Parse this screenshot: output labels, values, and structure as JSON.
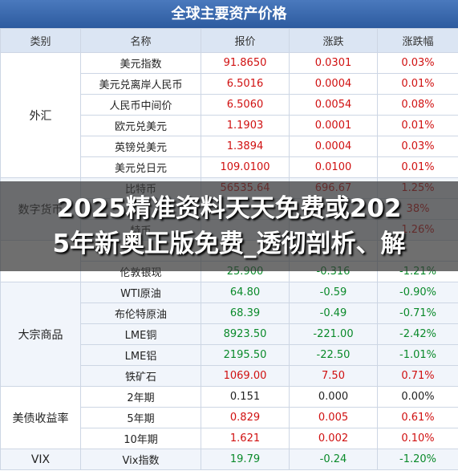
{
  "title": "全球主要资产价格",
  "header": [
    "类别",
    "名称",
    "报价",
    "涨跌",
    "涨跌幅"
  ],
  "groups": [
    {
      "category": "外汇",
      "rows": [
        [
          "美元指数",
          "91.8650",
          "0.0301",
          "0.03%"
        ],
        [
          "美元兑离岸人民币",
          "6.5016",
          "0.0004",
          "0.01%"
        ],
        [
          "人民币中间价",
          "6.5060",
          "0.0054",
          "0.08%"
        ],
        [
          "欧元兑美元",
          "1.1903",
          "0.0001",
          "0.01%"
        ],
        [
          "英镑兑美元",
          "1.3894",
          "0.0004",
          "0.03%"
        ],
        [
          "美元兑日元",
          "109.0100",
          "0.0100",
          "0.01%"
        ]
      ]
    },
    {
      "category": "数字货币",
      "rows": [
        [
          "比特币",
          "56535.64",
          "696.67",
          "1.25%"
        ],
        [
          null,
          null,
          null,
          "38%"
        ],
        [
          "特币",
          null,
          null,
          "1.26%"
        ]
      ]
    },
    {
      "category": null,
      "rows": [
        [
          null,
          null,
          null,
          null
        ],
        [
          "伦敦银现",
          "25.900",
          "-0.316",
          "-1.21%"
        ]
      ]
    },
    {
      "category": "大宗商品",
      "rows": [
        [
          "WTI原油",
          "64.80",
          "-0.59",
          "-0.90%"
        ],
        [
          "布伦特原油",
          "68.39",
          "-0.49",
          "-0.71%"
        ],
        [
          "LME铜",
          "8923.50",
          "-221.00",
          "-2.42%"
        ],
        [
          "LME铝",
          "2195.50",
          "-22.50",
          "-1.01%"
        ],
        [
          "铁矿石",
          "1069.00",
          "7.50",
          "0.71%"
        ]
      ]
    },
    {
      "category": "美债收益率",
      "rows": [
        [
          "2年期",
          "0.151",
          "0.000",
          "0.00%"
        ],
        [
          "5年期",
          "0.829",
          "0.005",
          "0.61%"
        ],
        [
          "10年期",
          "1.621",
          "0.002",
          "0.10%"
        ]
      ]
    },
    {
      "category": "VIX",
      "rows": [
        [
          "Vix指数",
          "19.79",
          "-0.24",
          "-1.20%"
        ]
      ]
    }
  ],
  "overlay": [
    "2025精准资料天天免费或202",
    "5年新奥正版免费_透彻剖析、解"
  ]
}
